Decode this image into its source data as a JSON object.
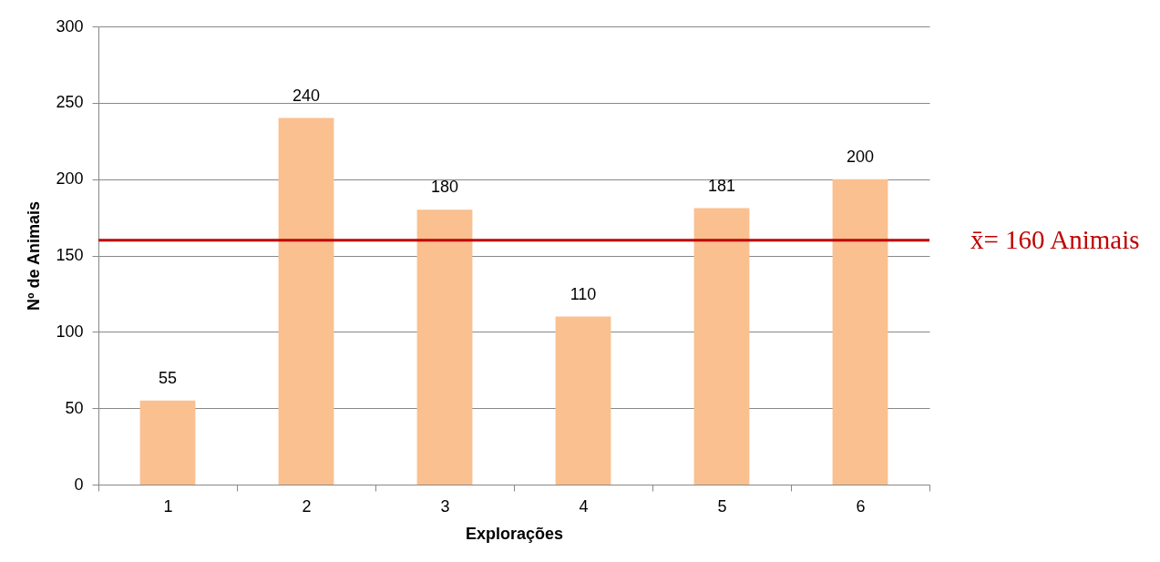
{
  "chart_data": {
    "type": "bar",
    "xlabel": "Explorações",
    "ylabel": "Nº de Animais",
    "categories": [
      "1",
      "2",
      "3",
      "4",
      "5",
      "6"
    ],
    "series": [
      {
        "color": "#fac090",
        "values": [
          55,
          240,
          180,
          110,
          181,
          200
        ]
      }
    ],
    "ylim": [
      0,
      300
    ],
    "yticks": [
      0,
      50,
      100,
      150,
      200,
      250,
      300
    ],
    "grid": "y",
    "data_labels": true,
    "ref_lines": [
      {
        "axis": "y",
        "value": 160,
        "label": "x̄= 160 Animais",
        "color": "#c00000"
      }
    ]
  }
}
